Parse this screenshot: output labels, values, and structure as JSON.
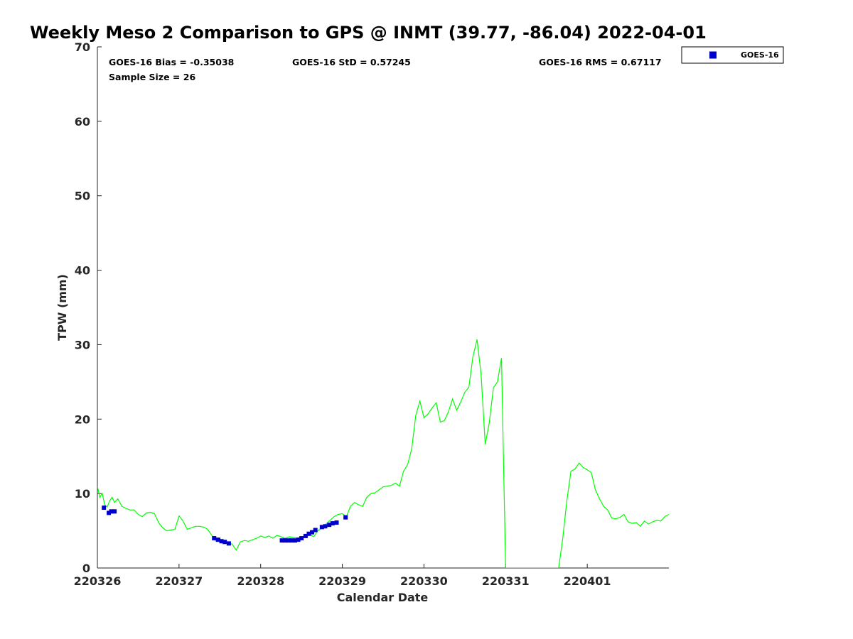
{
  "chart_data": {
    "type": "scatter",
    "title": "Weekly Meso 2 Comparison to GPS @ INMT (39.77, -86.04) 2022-04-01",
    "xlabel": "Calendar Date",
    "ylabel": "TPW (mm)",
    "xlim": [
      220326,
      220333
    ],
    "ylim": [
      0,
      70
    ],
    "x_tick_labels": [
      "220326",
      "220327",
      "220328",
      "220329",
      "220330",
      "220331",
      "220401"
    ],
    "x_ticks": [
      0,
      1,
      2,
      3,
      4,
      5,
      6
    ],
    "y_ticks": [
      0,
      10,
      20,
      30,
      40,
      50,
      60,
      70
    ],
    "stats": {
      "bias": "GOES-16 Bias = -0.35038",
      "std": "GOES-16 StD = 0.57245",
      "rms": "GOES-16 RMS = 0.67117",
      "sample": "Sample Size = 26"
    },
    "legend": {
      "placement": "top-right, outside axes",
      "entries": [
        "GOES-16"
      ]
    },
    "grid": false,
    "colors": {
      "goes": "#0000cc",
      "gps": "#00ff00"
    },
    "series": [
      {
        "name": "GOES-16",
        "style": "square markers",
        "x": [
          0.08,
          0.14,
          0.17,
          0.21,
          1.43,
          1.48,
          1.52,
          1.56,
          1.61,
          2.26,
          2.3,
          2.34,
          2.38,
          2.42,
          2.46,
          2.5,
          2.55,
          2.59,
          2.63,
          2.67,
          2.75,
          2.79,
          2.84,
          2.88,
          2.93,
          3.04
        ],
        "y": [
          8.1,
          7.4,
          7.6,
          7.6,
          4.0,
          3.8,
          3.6,
          3.5,
          3.3,
          3.7,
          3.7,
          3.7,
          3.7,
          3.7,
          3.8,
          4.0,
          4.3,
          4.6,
          4.8,
          5.1,
          5.5,
          5.6,
          5.8,
          6.0,
          6.1,
          6.8
        ]
      },
      {
        "style": "line",
        "x": [
          0,
          0.03,
          0.06,
          0.09,
          0.12,
          0.15,
          0.18,
          0.21,
          0.25,
          0.3,
          0.35,
          0.4,
          0.45,
          0.5,
          0.55,
          0.6,
          0.65,
          0.7,
          0.75,
          0.8,
          0.85,
          0.9,
          0.95,
          1.0,
          1.05,
          1.1,
          1.15,
          1.2,
          1.25,
          1.3,
          1.35,
          1.4,
          1.45,
          1.5,
          1.55,
          1.6,
          1.65,
          1.7,
          1.75,
          1.8,
          1.85,
          1.9,
          1.95,
          2.0,
          2.05,
          2.1,
          2.15,
          2.2,
          2.25,
          2.3,
          2.35,
          2.4,
          2.45,
          2.5,
          2.55,
          2.6,
          2.65,
          2.7,
          2.75,
          2.8,
          2.85,
          2.9,
          2.95,
          3.0,
          3.05,
          3.1,
          3.15,
          3.2,
          3.25,
          3.3,
          3.35,
          3.4,
          3.45,
          3.5,
          3.55,
          3.6,
          3.65,
          3.7,
          3.75,
          3.8,
          3.85,
          3.9,
          3.95,
          4.0,
          4.05,
          4.1,
          4.15,
          4.2,
          4.25,
          4.3,
          4.35,
          4.4,
          4.45,
          4.5,
          4.55,
          4.6,
          4.65,
          4.7,
          4.75,
          4.8,
          4.85,
          4.9,
          4.95,
          5.0,
          5.05,
          5.1,
          5.15,
          5.2,
          5.25,
          5.3,
          5.35,
          5.4,
          5.45,
          5.5,
          5.55,
          5.6,
          5.65,
          5.7,
          5.75,
          5.8,
          5.85,
          5.9,
          5.95,
          6.0,
          6.05,
          6.1,
          6.15,
          6.2,
          6.25,
          6.3,
          6.35,
          6.4,
          6.45,
          6.5,
          6.55,
          6.6,
          6.65,
          6.7,
          6.75,
          6.8,
          6.85,
          6.9,
          6.95,
          7.0
        ],
        "y": [
          11.0,
          9.5,
          10.0,
          8.5,
          8.2,
          9.0,
          9.5,
          8.8,
          9.3,
          8.3,
          8.0,
          7.8,
          7.8,
          7.2,
          6.9,
          7.4,
          7.5,
          7.3,
          6.1,
          5.4,
          5.0,
          5.1,
          5.2,
          7.0,
          6.3,
          5.2,
          5.4,
          5.6,
          5.6,
          5.5,
          5.2,
          4.4,
          3.6,
          3.6,
          3.3,
          3.4,
          3.2,
          2.4,
          3.5,
          3.7,
          3.6,
          3.8,
          4.0,
          4.3,
          4.1,
          4.3,
          4.0,
          4.4,
          4.2,
          4.0,
          4.2,
          4.1,
          4.0,
          4.2,
          4.1,
          4.5,
          4.2,
          5.0,
          5.4,
          5.9,
          6.4,
          6.9,
          7.2,
          7.3,
          6.9,
          8.3,
          8.8,
          8.5,
          8.3,
          9.5,
          10.0,
          10.1,
          10.5,
          10.9,
          11.0,
          11.1,
          11.4,
          11.0,
          13.0,
          13.9,
          16.0,
          20.5,
          22.4,
          20.2,
          20.7,
          21.5,
          22.2,
          19.6,
          19.8,
          21.0,
          22.7,
          21.2,
          22.3,
          23.6,
          24.3,
          28.4,
          30.7,
          26.0,
          16.6,
          19.5,
          24.2,
          25.0,
          28.2,
          0.0,
          0.0,
          0.0,
          0.0,
          0.0,
          0.0,
          0.0,
          0.0,
          0.0,
          0.0,
          0.0,
          0.0,
          0.0,
          0.0,
          4.0,
          9.0,
          13.0,
          13.3,
          14.1,
          13.5,
          13.2,
          12.8,
          10.5,
          9.3,
          8.3,
          7.8,
          6.7,
          6.6,
          6.8,
          7.2,
          6.2,
          6.0,
          6.1,
          5.6,
          6.3,
          5.9,
          6.2,
          6.4,
          6.3,
          6.9,
          7.2
        ]
      }
    ]
  }
}
